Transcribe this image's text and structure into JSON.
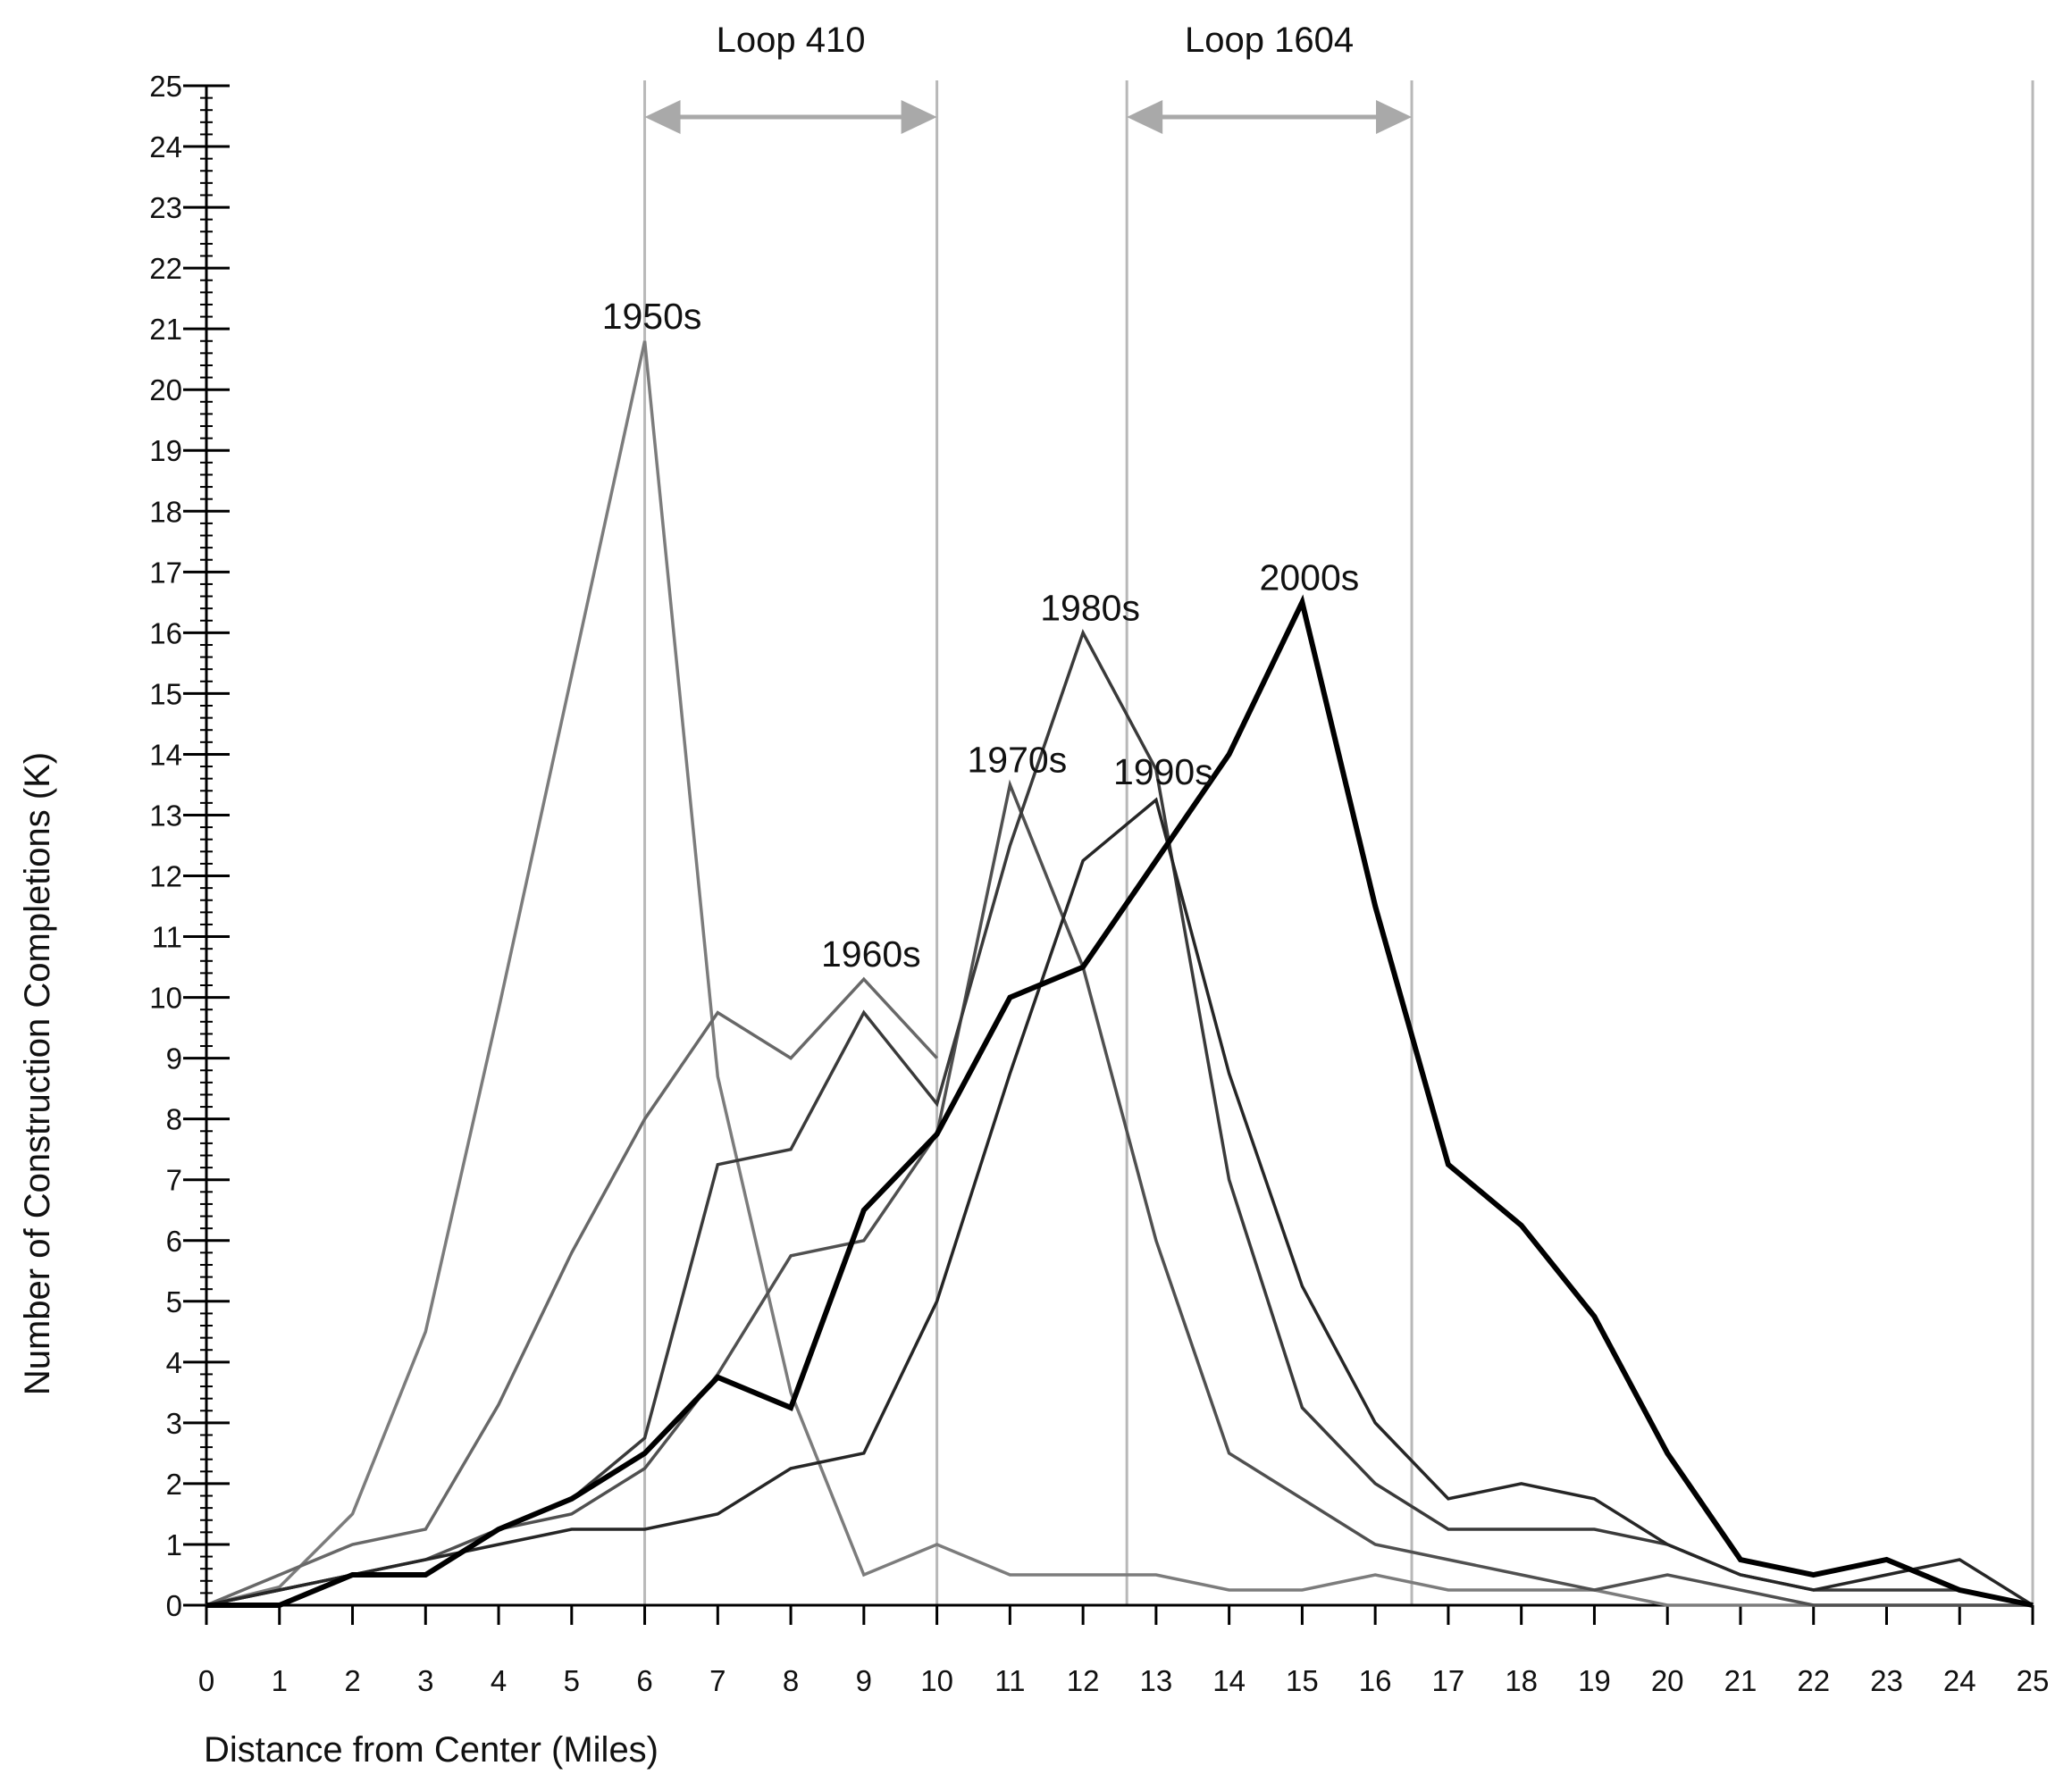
{
  "chart_data": {
    "type": "line",
    "title": "",
    "xlabel": "Distance from Center (Miles)",
    "ylabel": "Number of Construction Completions (K)",
    "xlim": [
      0,
      25
    ],
    "ylim": [
      0,
      25
    ],
    "x": [
      0,
      1,
      2,
      3,
      4,
      5,
      6,
      7,
      8,
      9,
      10,
      11,
      12,
      13,
      14,
      15,
      16,
      17,
      18,
      19,
      20,
      21,
      22,
      23,
      24,
      25
    ],
    "xticks": [
      "0",
      "1",
      "2",
      "3",
      "4",
      "5",
      "6",
      "7",
      "8",
      "9",
      "10",
      "11",
      "12",
      "13",
      "14",
      "15",
      "16",
      "17",
      "18",
      "19",
      "20",
      "21",
      "22",
      "23",
      "24",
      "25"
    ],
    "yticks": [
      "0",
      "1",
      "2",
      "3",
      "4",
      "5",
      "6",
      "7",
      "8",
      "9",
      "10",
      "11",
      "12",
      "13",
      "14",
      "15",
      "16",
      "17",
      "18",
      "19",
      "20",
      "21",
      "22",
      "23",
      "24",
      "25"
    ],
    "series": [
      {
        "name": "1950s",
        "color": "#7c7c7c",
        "width": 3.5,
        "label_at": [
          6,
          20.8
        ],
        "values": [
          0,
          0.3,
          1.5,
          4.5,
          9.8,
          15.3,
          20.8,
          8.7,
          3.5,
          0.5,
          1.0,
          0.5,
          0.5,
          0.5,
          0.25,
          0.25,
          0.5,
          0.25,
          0.25,
          0.25,
          0,
          0,
          0,
          0,
          0,
          0
        ]
      },
      {
        "name": "1960s",
        "color": "#686868",
        "width": 3.5,
        "label_at": [
          9,
          10.3
        ],
        "values": [
          0,
          0.5,
          1.0,
          1.25,
          3.3,
          5.8,
          8.0,
          9.75,
          9.0,
          10.3,
          9.0,
          null,
          null,
          null,
          null,
          null,
          null,
          null,
          null,
          null,
          null,
          null,
          null,
          null,
          null,
          null
        ]
      },
      {
        "name": "1970s",
        "color": "#505050",
        "width": 3.5,
        "label_at": [
          11,
          13.5
        ],
        "values": [
          0,
          0.25,
          0.5,
          0.75,
          1.25,
          1.5,
          2.25,
          3.8,
          5.75,
          6.0,
          7.75,
          13.5,
          10.5,
          6.0,
          2.5,
          1.75,
          1.0,
          0.75,
          0.5,
          0.25,
          0.5,
          0.25,
          0,
          0,
          0,
          0
        ]
      },
      {
        "name": "1980s",
        "color": "#3a3a3a",
        "width": 3.5,
        "label_at": [
          12,
          16.0
        ],
        "values": [
          0,
          0.25,
          0.5,
          0.5,
          1.25,
          1.75,
          2.75,
          7.25,
          7.5,
          9.75,
          8.25,
          12.5,
          16.0,
          13.75,
          7.0,
          3.25,
          2.0,
          1.25,
          1.25,
          1.25,
          1.0,
          0.5,
          0.25,
          0.25,
          0.25,
          0
        ]
      },
      {
        "name": "1990s",
        "color": "#262626",
        "width": 3.5,
        "label_at": [
          13,
          13.3
        ],
        "values": [
          0,
          0.25,
          0.5,
          0.75,
          1.0,
          1.25,
          1.25,
          1.5,
          2.25,
          2.5,
          5.0,
          8.75,
          12.25,
          13.25,
          8.75,
          5.25,
          3.0,
          1.75,
          2.0,
          1.75,
          1.0,
          0.5,
          0.25,
          0.5,
          0.75,
          0
        ]
      },
      {
        "name": "2000s",
        "color": "#000000",
        "width": 6,
        "label_at": [
          15,
          16.5
        ],
        "values": [
          0,
          0,
          0.5,
          0.5,
          1.25,
          1.75,
          2.5,
          3.75,
          3.25,
          6.5,
          7.75,
          10.0,
          10.5,
          12.25,
          14.0,
          16.5,
          11.5,
          7.25,
          6.25,
          4.75,
          2.5,
          0.75,
          0.5,
          0.75,
          0.25,
          0
        ]
      }
    ],
    "annotations": [
      {
        "label": "Loop 410",
        "x_start": 6,
        "x_end": 10
      },
      {
        "label": "Loop 1604",
        "x_start": 12.6,
        "x_end": 16.5
      }
    ],
    "reference_lines_x": [
      6,
      10,
      12.6,
      16.5,
      25
    ],
    "grid": false,
    "legend": "none (series labeled inline near peaks)"
  }
}
